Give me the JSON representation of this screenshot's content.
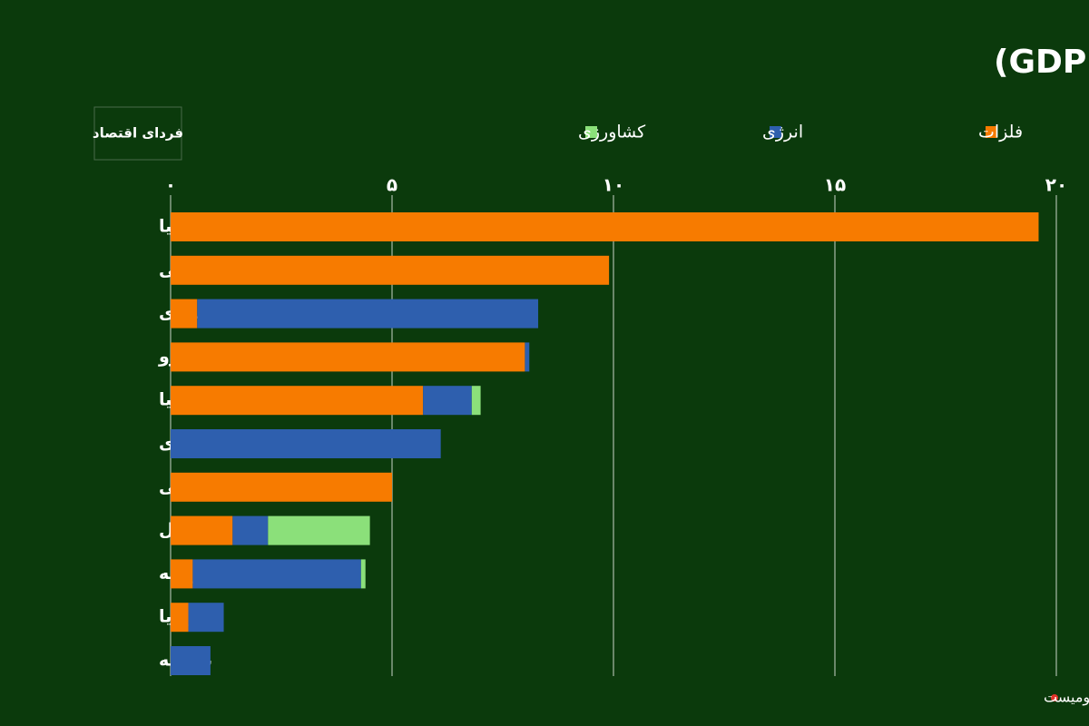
{
  "chart_data": {
    "type": "stacked-bar-horizontal",
    "title": "سهم صادرات کامودیتی به چین از تولید ناخالص داخلی (GDP)",
    "logo": "فردای اقتصاد",
    "source": "منبع: اکونومیست",
    "categories": [
      "زامبیا",
      "شیلی",
      "مالزی",
      "پرو",
      "استرلیا",
      "عربستان سعودی",
      "آفریقای جنوبی",
      "برزیل",
      "روسیه",
      "اندونزیا",
      "نیجریه"
    ],
    "series": [
      {
        "name": "فلزات",
        "color": "#f77b00",
        "values": [
          19.6,
          9.9,
          0.6,
          8.0,
          5.7,
          0,
          5.0,
          1.4,
          0.5,
          0.4,
          0
        ]
      },
      {
        "name": "انرژی",
        "color": "#2e5fae",
        "values": [
          0,
          0,
          7.7,
          0.1,
          1.1,
          6.1,
          0,
          0.8,
          3.8,
          0.8,
          0.9
        ]
      },
      {
        "name": "کشاورزی",
        "color": "#8be07a",
        "values": [
          0,
          0,
          0,
          0,
          0.2,
          0,
          0,
          2.3,
          0.1,
          0,
          0
        ]
      }
    ],
    "xlim": [
      0,
      20
    ],
    "xticks": [
      {
        "value": 0,
        "label": "۰"
      },
      {
        "value": 5,
        "label": "۵"
      },
      {
        "value": 10,
        "label": "۱۰"
      },
      {
        "value": 15,
        "label": "۱۵"
      },
      {
        "value": 20,
        "label": "۲۰"
      }
    ],
    "grid": true
  }
}
